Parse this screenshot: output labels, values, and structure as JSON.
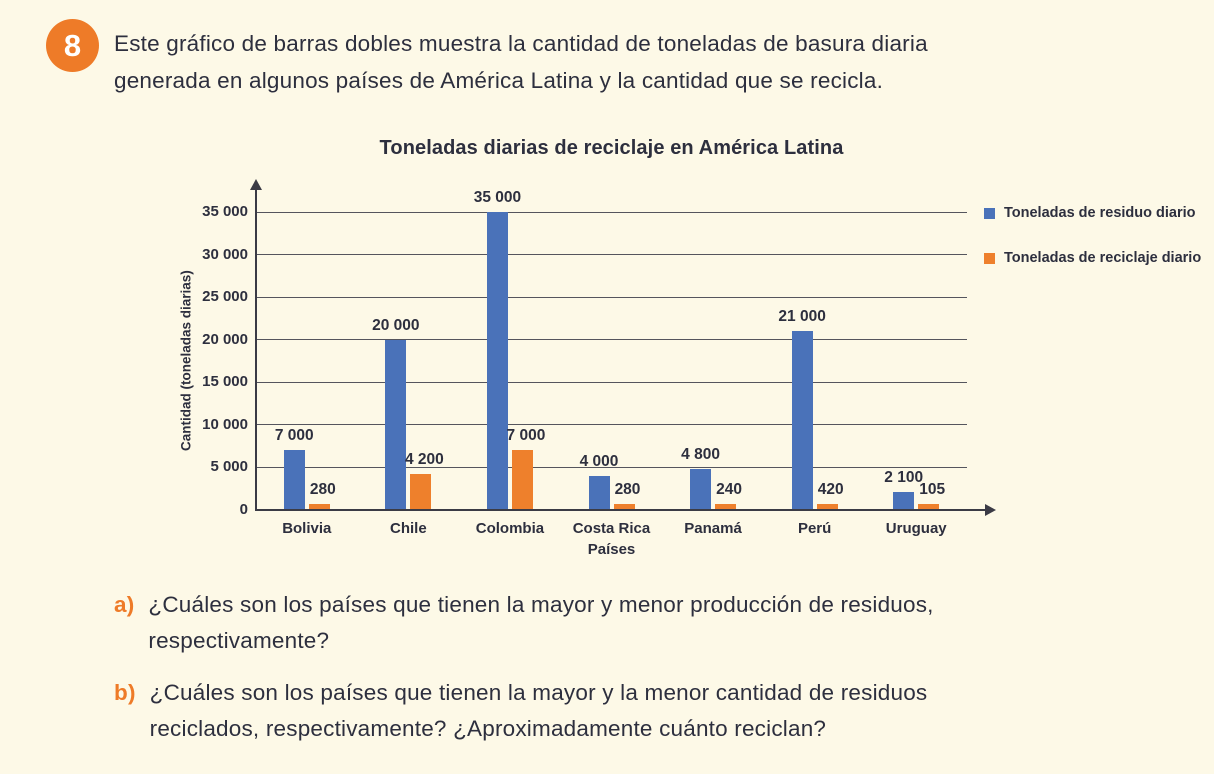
{
  "page": {
    "exercise_number": "8",
    "intro_lines": [
      "Este gráfico de barras dobles muestra la cantidad de toneladas de basura diaria",
      "generada en algunos países de América Latina y la cantidad que se recicla."
    ],
    "questions": [
      {
        "label": "a)",
        "lines": [
          "¿Cuáles son los países que tienen la mayor y menor producción de residuos,",
          "respectivamente?"
        ]
      },
      {
        "label": "b)",
        "lines": [
          "¿Cuáles son los países que tienen la mayor y la menor cantidad de residuos",
          "reciclados, respectivamente? ¿Aproximadamente cuánto reciclan?"
        ]
      }
    ]
  },
  "chart_data": {
    "type": "bar",
    "title": "Toneladas diarias de reciclaje en América Latina",
    "xlabel": "Países",
    "ylabel": "Cantidad (toneladas diarias)",
    "categories": [
      "Bolivia",
      "Chile",
      "Colombia",
      "Costa Rica",
      "Panamá",
      "Perú",
      "Uruguay"
    ],
    "series": [
      {
        "name": "Toneladas de residuo diario",
        "color": "#4A72B9",
        "values": [
          7000,
          20000,
          35000,
          4000,
          4800,
          21000,
          2100
        ],
        "labels": [
          "7 000",
          "20 000",
          "35 000",
          "4 000",
          "4 800",
          "21 000",
          "2 100"
        ]
      },
      {
        "name": "Toneladas de reciclaje diario",
        "color": "#EE802C",
        "values": [
          280,
          4200,
          7000,
          280,
          240,
          420,
          105
        ],
        "labels": [
          "280",
          "4 200",
          "7 000",
          "280",
          "240",
          "420",
          "105"
        ]
      }
    ],
    "ylim": [
      0,
      35000
    ],
    "ytick_step": 5000,
    "ytick_labels": [
      "0",
      "5 000",
      "10 000",
      "15 000",
      "20 000",
      "25 000",
      "30 000",
      "35 000"
    ],
    "grid": true,
    "legend_position": "right"
  },
  "colors": {
    "background": "#FDF9E7",
    "text": "#2D2F3E",
    "accent_orange": "#EE7B28",
    "bar_blue": "#4A72B9",
    "bar_orange": "#EE802C"
  }
}
